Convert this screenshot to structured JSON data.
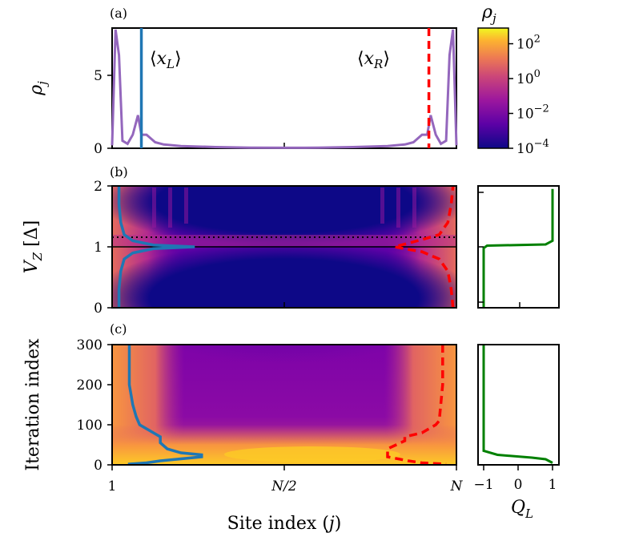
{
  "panels": {
    "a": {
      "label": "(a)",
      "ylabel": "ρ",
      "ylabel_sub": "j",
      "yticks": [
        "0",
        "5"
      ],
      "ylim": [
        0,
        8
      ]
    },
    "b": {
      "label": "(b)",
      "ylabel_main": "V",
      "ylabel_sub": "Z",
      "ylabel_unit": " [Δ]",
      "yticks": [
        "0",
        "1",
        "2"
      ],
      "ylim": [
        0,
        2
      ]
    },
    "c": {
      "label": "(c)",
      "ylabel": "Iteration index",
      "yticks": [
        "0",
        "100",
        "200",
        "300"
      ],
      "ylim": [
        0,
        300
      ]
    }
  },
  "annotations": {
    "xL": {
      "l": "⟨",
      "x": "x",
      "sub": "L",
      "r": "⟩",
      "color": "#1f77b4"
    },
    "xR": {
      "l": "⟨",
      "x": "x",
      "sub": "R",
      "r": "⟩",
      "color": "#ff0000"
    }
  },
  "colorbar": {
    "title": "ρ",
    "title_sub": "j",
    "base": "10",
    "exponents": [
      "2",
      "0",
      "−2",
      "−4"
    ],
    "colormap": "plasma"
  },
  "x_axis": {
    "ticks": [
      "1",
      "N/2",
      "N"
    ],
    "label_prefix": "Site index (",
    "label_var": "j",
    "label_suffix": ")"
  },
  "q_axis": {
    "label": "Q",
    "label_sub": "L",
    "ticks": [
      "−1",
      "0",
      "1"
    ],
    "color": "#008000"
  },
  "colors": {
    "density": "#9467bd",
    "left": "#1f77b4",
    "right": "#ff0000",
    "charge": "#008000"
  },
  "chart_data": [
    {
      "panel": "a",
      "type": "line",
      "xlabel": "",
      "ylabel": "ρ_j",
      "x": [
        0,
        0.01,
        0.02,
        0.03,
        0.045,
        0.06,
        0.075,
        0.085,
        0.1,
        0.125,
        0.15,
        0.2,
        0.3,
        0.4,
        0.5,
        0.6,
        0.7,
        0.8,
        0.85,
        0.875,
        0.9,
        0.915,
        0.925,
        0.94,
        0.955,
        0.97,
        0.98,
        0.99,
        1
      ],
      "y": [
        0.2,
        7.9,
        6.2,
        0.5,
        0.3,
        0.9,
        2.2,
        0.9,
        0.9,
        0.4,
        0.25,
        0.15,
        0.08,
        0.04,
        0.03,
        0.04,
        0.08,
        0.15,
        0.25,
        0.4,
        0.9,
        0.9,
        2.2,
        0.9,
        0.3,
        0.5,
        6.2,
        7.9,
        0.2
      ],
      "vlines": [
        {
          "name": "⟨x_L⟩",
          "x": 0.085,
          "style": "solid"
        },
        {
          "name": "⟨x_R⟩",
          "x": 0.92,
          "style": "dashed"
        }
      ]
    },
    {
      "panel": "b",
      "type": "heatmap+line",
      "ylabel": "V_Z [Δ]",
      "lines": [
        {
          "name": "⟨x_L⟩",
          "x": [
            0.02,
            0.02,
            0.025,
            0.035,
            0.06,
            0.12,
            0.24,
            0.12,
            0.06,
            0.035,
            0.025,
            0.02,
            0.02
          ],
          "y": [
            0,
            0.3,
            0.6,
            0.8,
            0.9,
            0.97,
            1.0,
            1.03,
            1.1,
            1.2,
            1.4,
            1.7,
            2.0
          ]
        },
        {
          "name": "⟨x_R⟩",
          "x": [
            0.99,
            0.985,
            0.975,
            0.95,
            0.9,
            0.82,
            0.9,
            0.95,
            0.975,
            0.985,
            0.99
          ],
          "y": [
            0,
            0.3,
            0.6,
            0.8,
            0.92,
            1.0,
            1.12,
            1.2,
            1.4,
            1.7,
            2.0
          ]
        }
      ],
      "hlines": [
        {
          "y": 1.0,
          "style": "solid"
        },
        {
          "y": 1.15,
          "style": "dotted"
        }
      ]
    },
    {
      "panel": "b-right",
      "type": "line",
      "x": [
        -1,
        -1,
        -0.9,
        0.8,
        1,
        1
      ],
      "y": [
        0,
        0.98,
        1.02,
        1.04,
        1.1,
        1.95
      ]
    },
    {
      "panel": "c",
      "type": "heatmap+line",
      "ylabel": "Iteration index",
      "lines": [
        {
          "name": "⟨x_L⟩",
          "x": [
            0.05,
            0.05,
            0.06,
            0.07,
            0.08,
            0.11,
            0.14,
            0.14,
            0.16,
            0.2,
            0.26,
            0.26,
            0.2,
            0.14,
            0.1,
            0.05,
            0.05
          ],
          "y": [
            300,
            200,
            150,
            120,
            100,
            85,
            70,
            55,
            40,
            30,
            25,
            20,
            15,
            10,
            5,
            2,
            0
          ]
        },
        {
          "name": "⟨x_R⟩",
          "x": [
            0.96,
            0.96,
            0.95,
            0.94,
            0.93,
            0.9,
            0.85,
            0.85,
            0.8,
            0.8,
            0.86,
            0.9,
            0.97
          ],
          "y": [
            300,
            200,
            110,
            100,
            95,
            80,
            70,
            60,
            40,
            20,
            10,
            5,
            2
          ]
        }
      ]
    },
    {
      "panel": "c-right",
      "type": "line",
      "x": [
        -1,
        -1,
        -0.6,
        0.4,
        0.8,
        1
      ],
      "y": [
        300,
        35,
        25,
        18,
        14,
        5
      ]
    }
  ]
}
